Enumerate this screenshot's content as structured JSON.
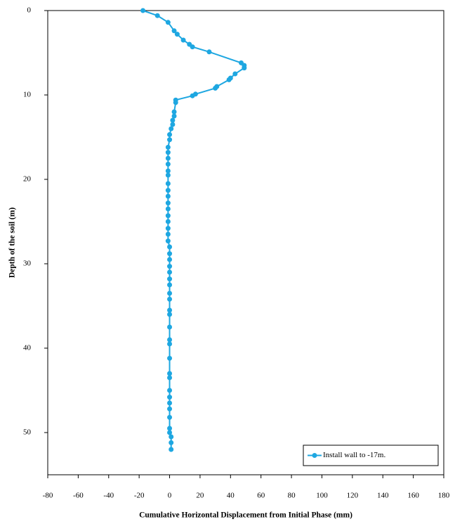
{
  "chart_data": {
    "type": "line",
    "xlabel": "Cumulative Horizontal Displacement from Initial Phase   (mm)",
    "ylabel": "Depth of the soil (m)",
    "xlim": [
      -80,
      180
    ],
    "xticks": [
      -80,
      -60,
      -40,
      -20,
      0,
      20,
      40,
      60,
      80,
      100,
      120,
      140,
      160,
      180
    ],
    "ylim": [
      0,
      55
    ],
    "yticks": [
      0,
      10,
      20,
      30,
      40,
      50
    ],
    "y_inverted": true,
    "legend": "lower right",
    "series": [
      {
        "name": "Install wall to -17m.",
        "color": "#1ea7e1",
        "x": [
          -17.5,
          -8,
          -1,
          3,
          5,
          9,
          13,
          15,
          26,
          47,
          49,
          49,
          43,
          40,
          39,
          31,
          30,
          17,
          15,
          4,
          4,
          3,
          3,
          2,
          2,
          1,
          0,
          0,
          -1,
          -1,
          -1,
          -1,
          -1,
          -1,
          -1,
          -1,
          -1,
          -1,
          -1,
          -1,
          -1,
          -1,
          -1,
          -1,
          0,
          0,
          0,
          0,
          0,
          0,
          0,
          0,
          0,
          0,
          0,
          0,
          0,
          0,
          0,
          0,
          0,
          0,
          0,
          0,
          0,
          0,
          0,
          0,
          1,
          1,
          1
        ],
        "values": [
          0,
          0.6,
          1.4,
          2.4,
          2.8,
          3.5,
          4.0,
          4.3,
          4.9,
          6.2,
          6.5,
          6.8,
          7.5,
          8.0,
          8.2,
          9.0,
          9.2,
          9.9,
          10.1,
          10.6,
          10.9,
          12.0,
          12.5,
          13.0,
          13.5,
          14.0,
          14.7,
          15.3,
          16.2,
          16.8,
          17.5,
          18.2,
          19.0,
          19.5,
          20.5,
          21.3,
          22.0,
          22.8,
          23.5,
          24.3,
          25.0,
          25.8,
          26.5,
          27.3,
          28.0,
          28.8,
          29.5,
          30.3,
          31.0,
          31.8,
          32.5,
          33.5,
          34.2,
          35.5,
          36.0,
          37.5,
          39.0,
          39.5,
          41.2,
          43.0,
          43.5,
          45.0,
          45.8,
          46.5,
          47.2,
          48.2,
          49.5,
          50.0,
          50.5,
          51.2,
          52.0
        ]
      }
    ]
  }
}
